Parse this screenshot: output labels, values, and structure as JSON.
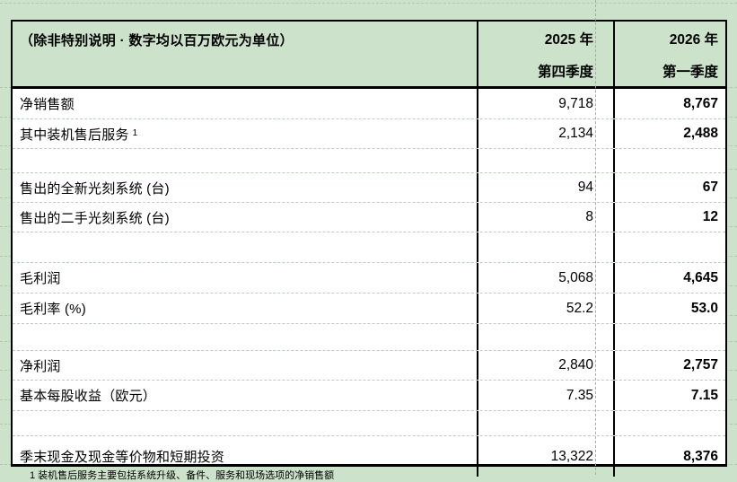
{
  "table": {
    "header": {
      "note": "（除非特别说明 · 数字均以百万欧元为单位）",
      "col_2025": {
        "line1": "2025 年",
        "line2": "第四季度"
      },
      "col_2026": {
        "line1": "2026 年",
        "line2": "第一季度"
      }
    },
    "rows": [
      {
        "label": "净销售额",
        "v2025": "9,718",
        "v2026": "8,767"
      },
      {
        "label": "其中装机售后服务",
        "sup": "1",
        "v2025": "2,134",
        "v2026": "2,488"
      },
      {
        "blank": true
      },
      {
        "label": "售出的全新光刻系统 (台)",
        "v2025": "94",
        "v2026": "67"
      },
      {
        "label": "售出的二手光刻系统 (台)",
        "v2025": "8",
        "v2026": "12"
      },
      {
        "blank": true
      },
      {
        "label": "毛利润",
        "v2025": "5,068",
        "v2026": "4,645"
      },
      {
        "label": "毛利率 (%)",
        "v2025": "52.2",
        "v2026": "53.0"
      },
      {
        "blank": true
      },
      {
        "label": "净利润",
        "v2025": "2,840",
        "v2026": "2,757"
      },
      {
        "label": "基本每股收益（欧元）",
        "v2025": "7.35",
        "v2026": "7.15"
      },
      {
        "blank": true
      },
      {
        "label": "季末现金及现金等价物和短期投资",
        "v2025": "13,322",
        "v2026": "8,376"
      }
    ],
    "footnote": "1 装机售后服务主要包括系统升级、备件、服务和现场选项的净销售额"
  },
  "colors": {
    "page_background": "#cde2cb",
    "cell_background": "#ffffff",
    "table_border": "#000000",
    "row_gridline": "#bccdbc",
    "pagebreak_line": "#a6aaa6"
  }
}
